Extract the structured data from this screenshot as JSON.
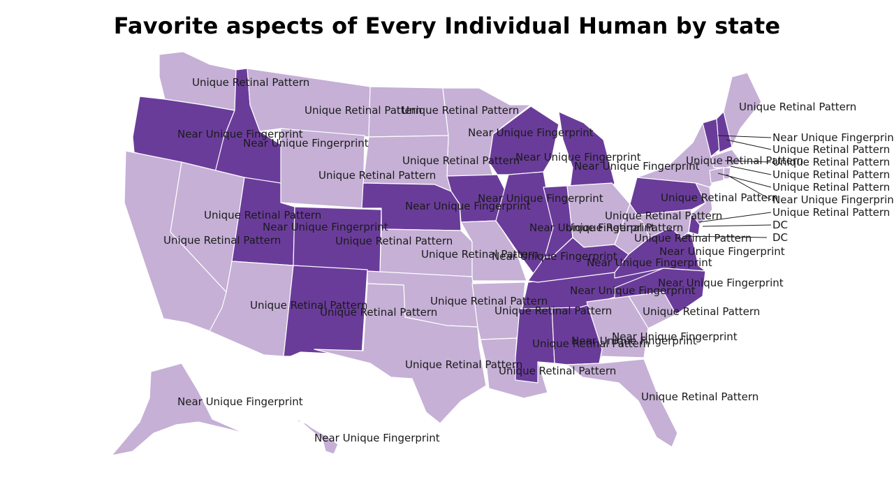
{
  "title": "Favorite aspects of Every Individual Human by state",
  "colors": {
    "Unique Retinal Pattern": "#c6b0d6",
    "Near Unique Fingerprint": "#6a3c9a",
    "background": "#ffffff"
  },
  "states": [
    {
      "code": "WA",
      "value": "Unique Retinal Pattern"
    },
    {
      "code": "OR",
      "value": "Near Unique Fingerprint"
    },
    {
      "code": "ID",
      "value": "Near Unique Fingerprint"
    },
    {
      "code": "MT",
      "value": "Unique Retinal Pattern"
    },
    {
      "code": "ND",
      "value": "Unique Retinal Pattern"
    },
    {
      "code": "MN",
      "value": "Unique Retinal Pattern"
    },
    {
      "code": "WY",
      "value": "Unique Retinal Pattern"
    },
    {
      "code": "SD",
      "value": "Unique Retinal Pattern"
    },
    {
      "code": "CA",
      "value": "Unique Retinal Pattern"
    },
    {
      "code": "NV",
      "value": "Unique Retinal Pattern"
    },
    {
      "code": "UT",
      "value": "Near Unique Fingerprint"
    },
    {
      "code": "CO",
      "value": "Near Unique Fingerprint"
    },
    {
      "code": "NE",
      "value": "Near Unique Fingerprint"
    },
    {
      "code": "IA",
      "value": "Near Unique Fingerprint"
    },
    {
      "code": "WI",
      "value": "Near Unique Fingerprint"
    },
    {
      "code": "MI",
      "value": "Near Unique Fingerprint"
    },
    {
      "code": "AZ",
      "value": "Unique Retinal Pattern"
    },
    {
      "code": "NM",
      "value": "Near Unique Fingerprint"
    },
    {
      "code": "KS",
      "value": "Unique Retinal Pattern"
    },
    {
      "code": "MO",
      "value": "Unique Retinal Pattern"
    },
    {
      "code": "IL",
      "value": "Near Unique Fingerprint"
    },
    {
      "code": "IN",
      "value": "Near Unique Fingerprint"
    },
    {
      "code": "OH",
      "value": "Unique Retinal Pattern"
    },
    {
      "code": "PA",
      "value": "Near Unique Fingerprint"
    },
    {
      "code": "NY",
      "value": "Unique Retinal Pattern"
    },
    {
      "code": "OK",
      "value": "Unique Retinal Pattern"
    },
    {
      "code": "TX",
      "value": "Unique Retinal Pattern"
    },
    {
      "code": "AR",
      "value": "Unique Retinal Pattern"
    },
    {
      "code": "LA",
      "value": "Unique Retinal Pattern"
    },
    {
      "code": "MS",
      "value": "Near Unique Fingerprint"
    },
    {
      "code": "AL",
      "value": "Near Unique Fingerprint"
    },
    {
      "code": "TN",
      "value": "Near Unique Fingerprint"
    },
    {
      "code": "KY",
      "value": "Near Unique Fingerprint"
    },
    {
      "code": "WV",
      "value": "Unique Retinal Pattern"
    },
    {
      "code": "VA",
      "value": "Near Unique Fingerprint"
    },
    {
      "code": "NC",
      "value": "Near Unique Fingerprint"
    },
    {
      "code": "SC",
      "value": "Unique Retinal Pattern"
    },
    {
      "code": "GA",
      "value": "Unique Retinal Pattern"
    },
    {
      "code": "FL",
      "value": "Unique Retinal Pattern"
    },
    {
      "code": "ME",
      "value": "Unique Retinal Pattern"
    },
    {
      "code": "VT",
      "value": "Near Unique Fingerprint"
    },
    {
      "code": "NH",
      "value": "Near Unique Fingerprint"
    },
    {
      "code": "MA",
      "value": "Unique Retinal Pattern"
    },
    {
      "code": "RI",
      "value": "Unique Retinal Pattern"
    },
    {
      "code": "CT",
      "value": "Unique Retinal Pattern"
    },
    {
      "code": "NJ",
      "value": "Unique Retinal Pattern"
    },
    {
      "code": "DE",
      "value": "Near Unique Fingerprint"
    },
    {
      "code": "MD",
      "value": "Unique Retinal Pattern"
    },
    {
      "code": "DC",
      "value": "DC"
    },
    {
      "code": "AK",
      "value": "Unique Retinal Pattern"
    },
    {
      "code": "HI",
      "value": "Unique Retinal Pattern"
    }
  ],
  "labels": [
    {
      "text": "Unique Retinal Pattern"
    },
    {
      "text": "Near Unique Fingerprint"
    },
    {
      "text": "Near Unique Fingerprint"
    },
    {
      "text": "Unique Retinal Pattern"
    },
    {
      "text": "Unique Retinal Pattern"
    },
    {
      "text": "Unique Retinal Pattern"
    },
    {
      "text": "Unique Retinal Pattern"
    },
    {
      "text": "Unique Retinal Pattern"
    },
    {
      "text": "Near Unique Fingerprint"
    },
    {
      "text": "Unique Retinal Pattern"
    },
    {
      "text": "Near Unique Fingerprint"
    },
    {
      "text": "Unique Retinal Pattern"
    },
    {
      "text": "Near Unique Fingerprint"
    },
    {
      "text": "Near Unique Fingerprint"
    },
    {
      "text": "Near Unique Fingerprint"
    },
    {
      "text": "Near Unique Fingerprint"
    },
    {
      "text": "Unique Retinal Pattern"
    },
    {
      "text": "Near Unique Fingerprint"
    },
    {
      "text": "Unique Retinal Pattern"
    },
    {
      "text": "Unique Retinal Pattern"
    },
    {
      "text": "Near Unique Fingerprint"
    },
    {
      "text": "Unique Retinal Pattern"
    },
    {
      "text": "Near Unique Fingerprint"
    },
    {
      "text": "Unique Retinal Pattern"
    },
    {
      "text": "Unique Retinal Pattern"
    },
    {
      "text": "Unique Retinal Pattern"
    },
    {
      "text": "Unique Retinal Pattern"
    },
    {
      "text": "Unique Retinal Pattern"
    },
    {
      "text": "Near Unique Fingerprint"
    },
    {
      "text": "Near Unique Fingerprint"
    },
    {
      "text": "Near Unique Fingerprint"
    },
    {
      "text": "Near Unique Fingerprint"
    },
    {
      "text": "Unique Retinal Pattern"
    },
    {
      "text": "Near Unique Fingerprint"
    },
    {
      "text": "Near Unique Fingerprint"
    },
    {
      "text": "Unique Retinal Pattern"
    },
    {
      "text": "Unique Retinal Pattern"
    },
    {
      "text": "Unique Retinal Pattern"
    },
    {
      "text": "Unique Retinal Pattern"
    },
    {
      "text": "Unique Retinal Pattern"
    },
    {
      "text": "Unique Retinal Pattern"
    },
    {
      "text": "Near Unique Fingerprint"
    },
    {
      "text": "Near Unique Fingerprint"
    },
    {
      "text": "Unique Retinal Pattern"
    },
    {
      "text": "Unique Retinal Pattern"
    },
    {
      "text": "Unique Retinal Pattern"
    },
    {
      "text": "Unique Retinal Pattern"
    },
    {
      "text": "Near Unique Fingerprint"
    },
    {
      "text": "Unique Retinal Pattern"
    },
    {
      "text": "DC"
    }
  ]
}
